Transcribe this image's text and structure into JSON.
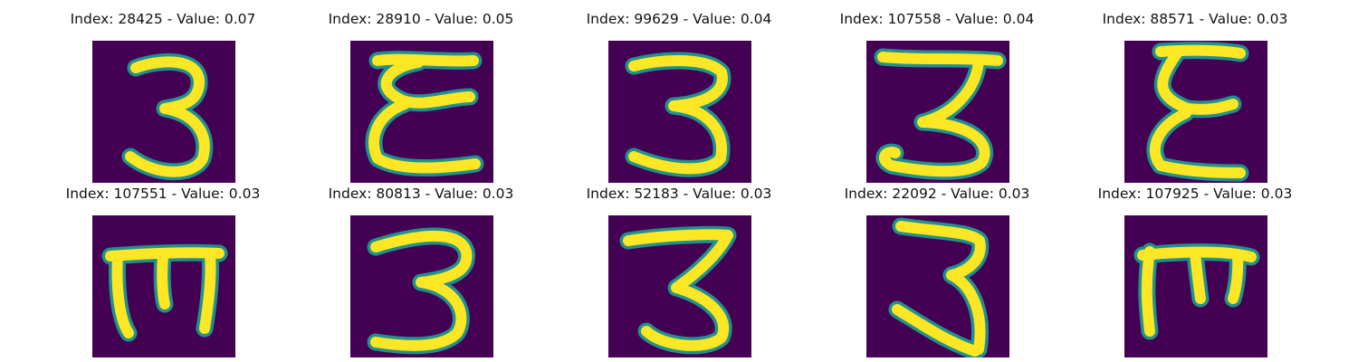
{
  "colors": {
    "background": "#440154",
    "stroke": "#fde725",
    "edge": "#21918c"
  },
  "panels": [
    {
      "title": "Index: 28425 - Value: 0.07",
      "glyph": "3"
    },
    {
      "title": "Index: 28910 - Value: 0.05",
      "glyph": "ε"
    },
    {
      "title": "Index: 99629 - Value: 0.04",
      "glyph": "3"
    },
    {
      "title": "Index: 107558 - Value: 0.04",
      "glyph": "3"
    },
    {
      "title": "Index: 88571 - Value: 0.03",
      "glyph": "ε"
    },
    {
      "title": "Index: 107551 - Value: 0.03",
      "glyph": "ш"
    },
    {
      "title": "Index: 80813 - Value: 0.03",
      "glyph": "3"
    },
    {
      "title": "Index: 52183 - Value: 0.03",
      "glyph": "3"
    },
    {
      "title": "Index: 22092 - Value: 0.03",
      "glyph": "3"
    },
    {
      "title": "Index: 107925 - Value: 0.03",
      "glyph": "ш"
    }
  ]
}
